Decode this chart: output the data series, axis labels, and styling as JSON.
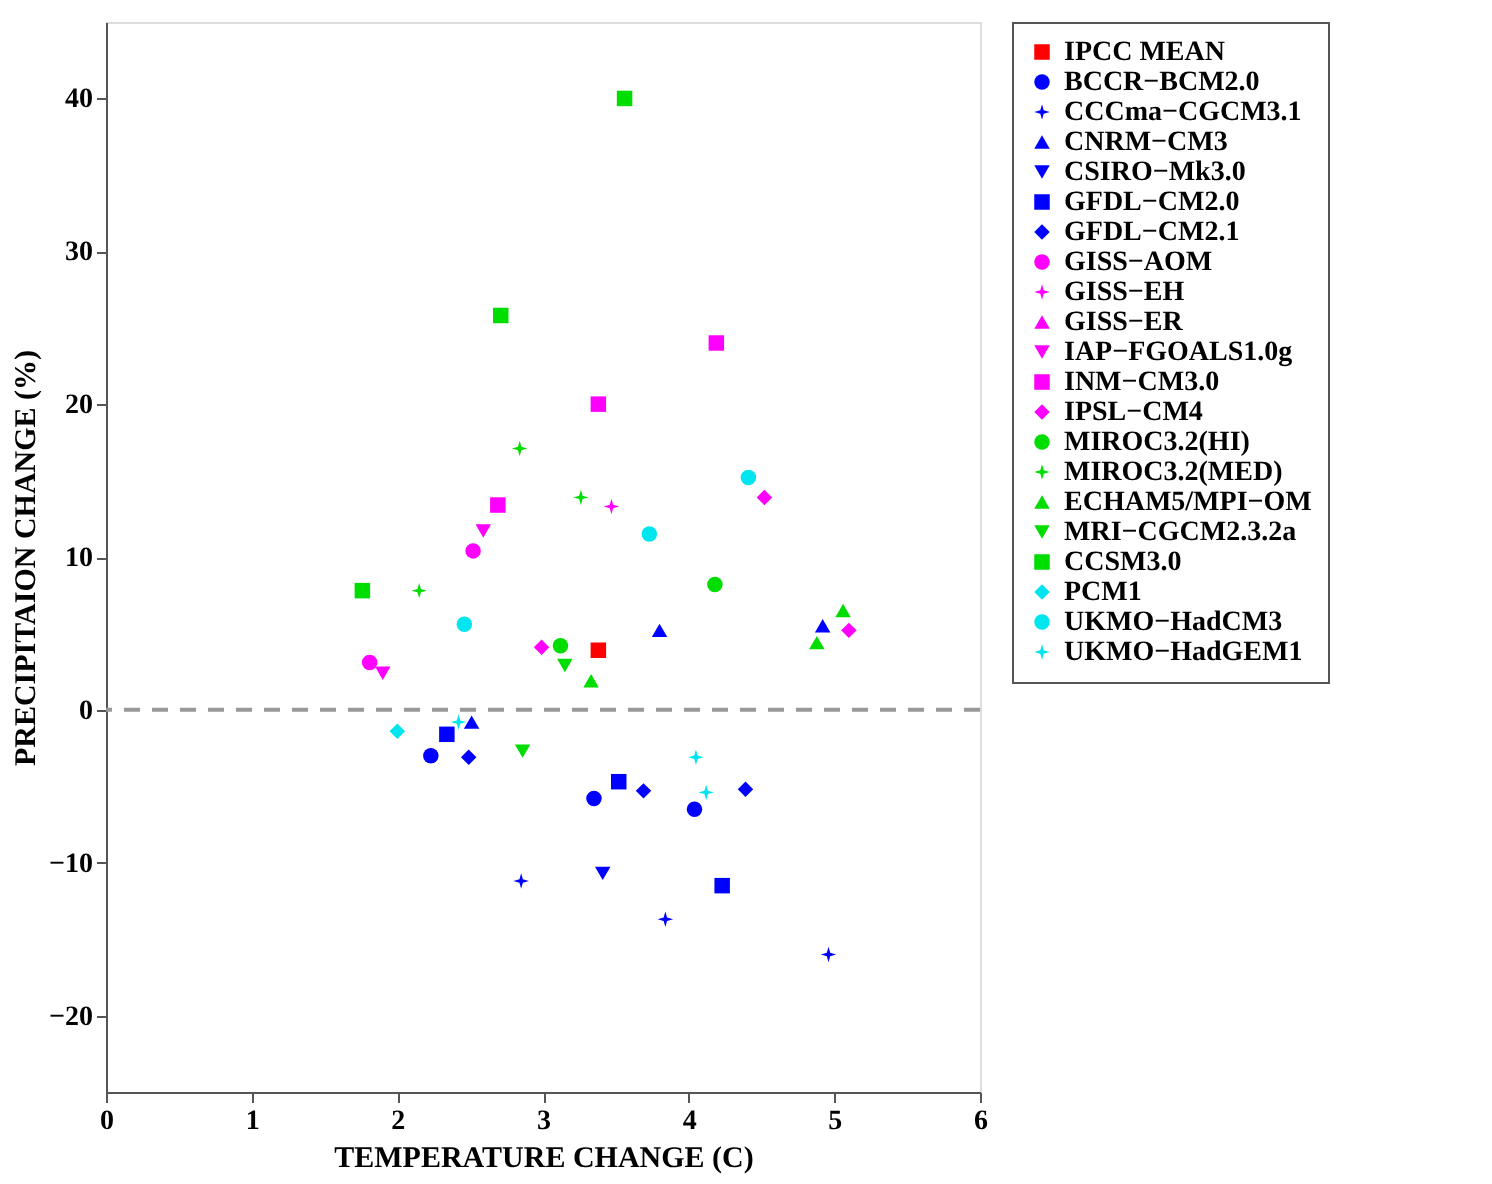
{
  "chart_data": {
    "type": "scatter",
    "xlabel": "TEMPERATURE CHANGE (C)",
    "ylabel": "PRECIPITAION CHANGE (%)",
    "xlim": [
      0,
      6
    ],
    "xticks": [
      0,
      1,
      2,
      3,
      4,
      5,
      6
    ],
    "ylim": [
      -25,
      45
    ],
    "yticks": [
      -20,
      -10,
      0,
      10,
      20,
      30,
      40
    ],
    "grid": false,
    "legend": "right",
    "ref_lines": [
      {
        "axis": "y",
        "value": 0,
        "color": "#999999",
        "line_style": "dashed"
      }
    ],
    "series": [
      {
        "name": "IPCC MEAN",
        "color": "#ff0000",
        "marker": "square",
        "x": [
          3.38
        ],
        "values": [
          3.9
        ]
      },
      {
        "name": "BCCR−BCM2.0",
        "color": "#0000ff",
        "marker": "circle",
        "x": [
          2.23,
          3.35,
          4.04
        ],
        "values": [
          -3.0,
          -5.8,
          -6.5
        ]
      },
      {
        "name": "CCCma−CGCM3.1",
        "color": "#0000ff",
        "marker": "star",
        "x": [
          2.85,
          3.84,
          4.96
        ],
        "values": [
          -11.2,
          -13.7,
          -16.0
        ]
      },
      {
        "name": "CNRM−CM3",
        "color": "#0000ff",
        "marker": "triangle",
        "x": [
          2.51,
          3.8,
          4.92
        ],
        "values": [
          -0.8,
          5.2,
          5.5
        ]
      },
      {
        "name": "CSIRO−Mk3.0",
        "color": "#0000ff",
        "marker": "triangle-down",
        "x": [
          3.41
        ],
        "values": [
          -10.7
        ]
      },
      {
        "name": "GFDL−CM2.0",
        "color": "#0000ff",
        "marker": "square",
        "x": [
          2.34,
          3.52,
          4.23
        ],
        "values": [
          -1.6,
          -4.7,
          -11.5
        ]
      },
      {
        "name": "GFDL−CM2.1",
        "color": "#0000ff",
        "marker": "diamond",
        "x": [
          2.49,
          3.69,
          4.39
        ],
        "values": [
          -3.1,
          -5.3,
          -5.2
        ]
      },
      {
        "name": "GISS−AOM",
        "color": "#ff00ff",
        "marker": "circle",
        "x": [
          1.81,
          2.52
        ],
        "values": [
          3.1,
          10.4
        ]
      },
      {
        "name": "GISS−EH",
        "color": "#ff00ff",
        "marker": "star",
        "x": [
          3.47
        ],
        "values": [
          13.3
        ]
      },
      {
        "name": "GISS−ER",
        "color": "#ff00ff",
        "marker": "triangle"
      },
      {
        "name": "IAP−FGOALS1.0g",
        "color": "#ff00ff",
        "marker": "triangle-down",
        "x": [
          1.9,
          2.59
        ],
        "values": [
          2.4,
          11.7
        ]
      },
      {
        "name": "INM−CM3.0",
        "color": "#ff00ff",
        "marker": "square",
        "x": [
          2.69,
          3.38,
          4.19
        ],
        "values": [
          13.4,
          20.0,
          24.0
        ]
      },
      {
        "name": "IPSL−CM4",
        "color": "#ff00ff",
        "marker": "diamond",
        "x": [
          2.99,
          4.52,
          5.1
        ],
        "values": [
          4.1,
          13.9,
          5.2
        ]
      },
      {
        "name": "MIROC3.2(HI)",
        "color": "#00dd00",
        "marker": "circle",
        "x": [
          3.12,
          4.18
        ],
        "values": [
          4.2,
          8.2
        ]
      },
      {
        "name": "MIROC3.2(MED)",
        "color": "#00dd00",
        "marker": "star",
        "x": [
          2.15,
          2.84,
          3.26
        ],
        "values": [
          7.8,
          17.1,
          13.9
        ]
      },
      {
        "name": "ECHAM5/MPI−OM",
        "color": "#00dd00",
        "marker": "triangle",
        "x": [
          3.33,
          4.88,
          5.06
        ],
        "values": [
          1.9,
          4.4,
          6.5
        ]
      },
      {
        "name": "MRI−CGCM2.3.2a",
        "color": "#00dd00",
        "marker": "triangle-down",
        "x": [
          2.86,
          3.15
        ],
        "values": [
          -2.7,
          2.9
        ]
      },
      {
        "name": "CCSM3.0",
        "color": "#00dd00",
        "marker": "square",
        "x": [
          1.76,
          2.71,
          3.56
        ],
        "values": [
          7.8,
          25.8,
          40.0
        ]
      },
      {
        "name": "PCM1",
        "color": "#00e5ee",
        "marker": "diamond",
        "x": [
          2.0
        ],
        "values": [
          -1.4
        ]
      },
      {
        "name": "UKMO−HadCM3",
        "color": "#00e5ee",
        "marker": "circle",
        "x": [
          2.46,
          3.73,
          4.41
        ],
        "values": [
          5.6,
          11.5,
          15.2
        ]
      },
      {
        "name": "UKMO−HadGEM1",
        "color": "#00e5ee",
        "marker": "star",
        "x": [
          2.42,
          4.05,
          4.12
        ],
        "values": [
          -0.8,
          -3.1,
          -5.4
        ]
      }
    ]
  }
}
